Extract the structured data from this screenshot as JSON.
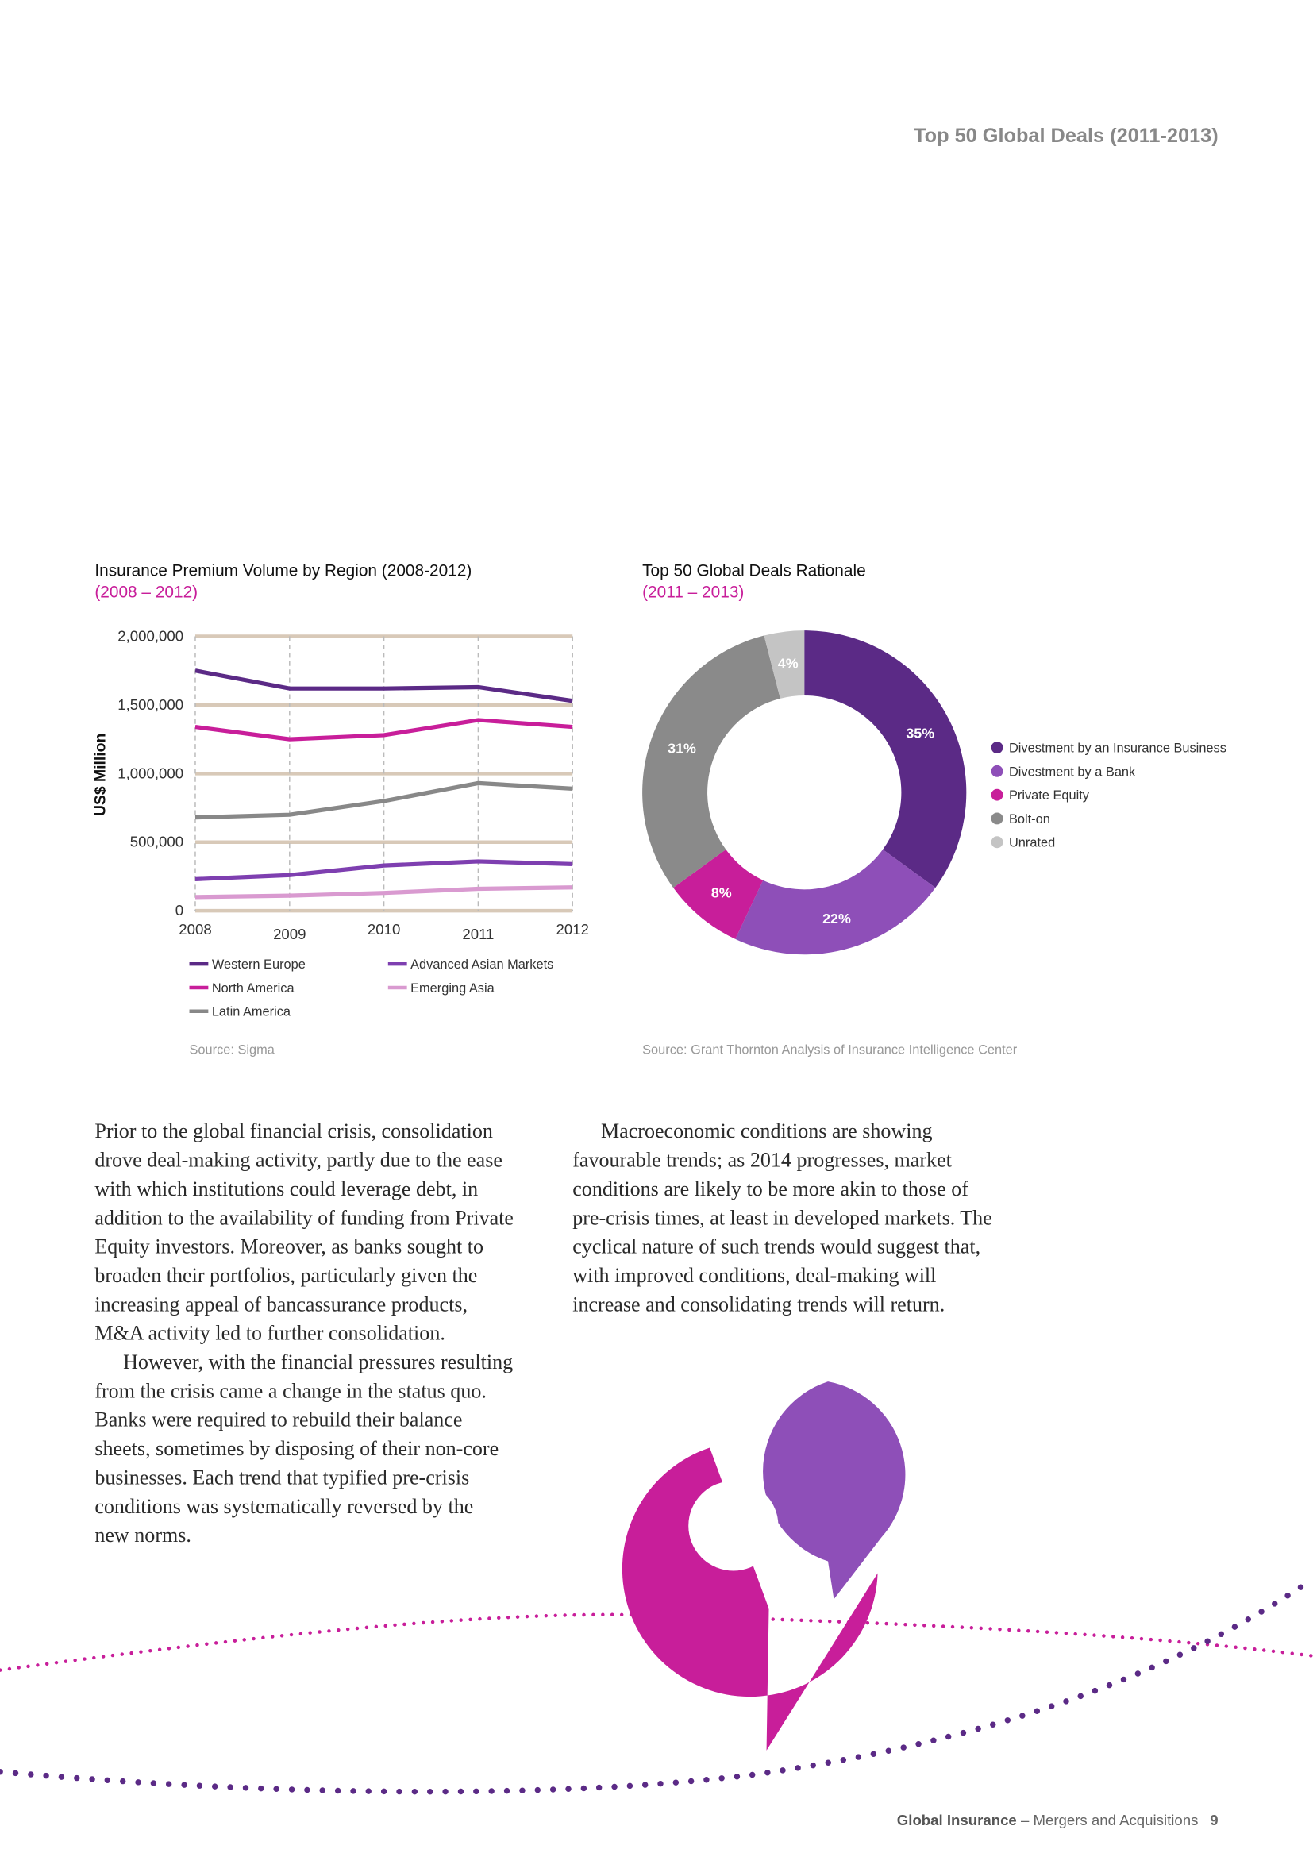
{
  "header": {
    "title": "Top 50 Global Deals (2011-2013)"
  },
  "chart_data": [
    {
      "type": "line",
      "title": "Insurance Premium Volume by Region (2008-2012)",
      "subtitle": "(2008 – 2012)",
      "y_label": "US$ Million",
      "categories": [
        "2008",
        "2009",
        "2010",
        "2011",
        "2012"
      ],
      "series": [
        {
          "name": "Western Europe",
          "color": "#5b2a86",
          "values": [
            1750000,
            1620000,
            1620000,
            1630000,
            1530000
          ]
        },
        {
          "name": "Advanced Asian Markets",
          "color": "#7e3fb0",
          "values": [
            230000,
            260000,
            330000,
            360000,
            340000
          ]
        },
        {
          "name": "North America",
          "color": "#c81e9a",
          "values": [
            1340000,
            1250000,
            1280000,
            1390000,
            1340000
          ]
        },
        {
          "name": "Emerging Asia",
          "color": "#d99ad0",
          "values": [
            100000,
            110000,
            130000,
            160000,
            170000
          ]
        },
        {
          "name": "Latin America",
          "color": "#888888",
          "values": [
            680000,
            700000,
            800000,
            930000,
            890000
          ]
        }
      ],
      "ylim": [
        0,
        2000000
      ],
      "yticks": [
        0,
        {
          "value": 500000,
          "label": "500,000"
        },
        {
          "value": 1000000,
          "label": "1,000,000"
        },
        {
          "value": 1500000,
          "label": "1,500,000"
        },
        {
          "value": 2000000,
          "label": "2,000,000"
        }
      ],
      "grid": true,
      "source": "Source: Sigma"
    },
    {
      "type": "pie",
      "title": "Top 50 Global Deals Rationale",
      "subtitle": "(2011 – 2013)",
      "categories": [
        "Divestment by an Insurance Business",
        "Divestment by a Bank",
        "Private Equity",
        "Bolt-on",
        "Unrated"
      ],
      "values": [
        35,
        22,
        8,
        31,
        4
      ],
      "value_labels": [
        "35%",
        "22%",
        "8%",
        "31%",
        "4%"
      ],
      "colors": [
        "#5b2a86",
        "#8e4fb8",
        "#c81e9a",
        "#8a8a8a",
        "#c4c4c4"
      ],
      "source": "Source: Grant Thornton Analysis of Insurance Intelligence Center"
    }
  ],
  "body": {
    "left": [
      [
        "Prior to the global financial crisis, consolidation",
        "drove deal-making activity, partly due to the ease",
        "with which institutions could leverage debt, in",
        "addition to the availability of funding from Private",
        "Equity investors. Moreover, as banks sought to",
        "broaden their portfolios, particularly given the",
        "increasing appeal of bancassurance products,",
        "M&A activity led to further consolidation."
      ],
      [
        "However, with the financial pressures resulting",
        "from the crisis came a change in the status quo.",
        "Banks were required to rebuild their balance",
        "sheets, sometimes by disposing of their non-core",
        "businesses. Each trend that typified pre-crisis",
        "conditions was systematically reversed by the",
        "new norms."
      ]
    ],
    "right": [
      [
        "Macroeconomic conditions are showing",
        "favourable trends; as 2014 progresses, market",
        "conditions are likely to be more akin to those of",
        "pre-crisis times, at least in developed markets. The",
        "cyclical nature of such trends would suggest that,",
        "with improved conditions, deal-making will",
        "increase and consolidating trends will return."
      ]
    ]
  },
  "footer": {
    "publication": "Global Insurance",
    "section": " – Mergers and Acquisitions",
    "page": "9"
  }
}
